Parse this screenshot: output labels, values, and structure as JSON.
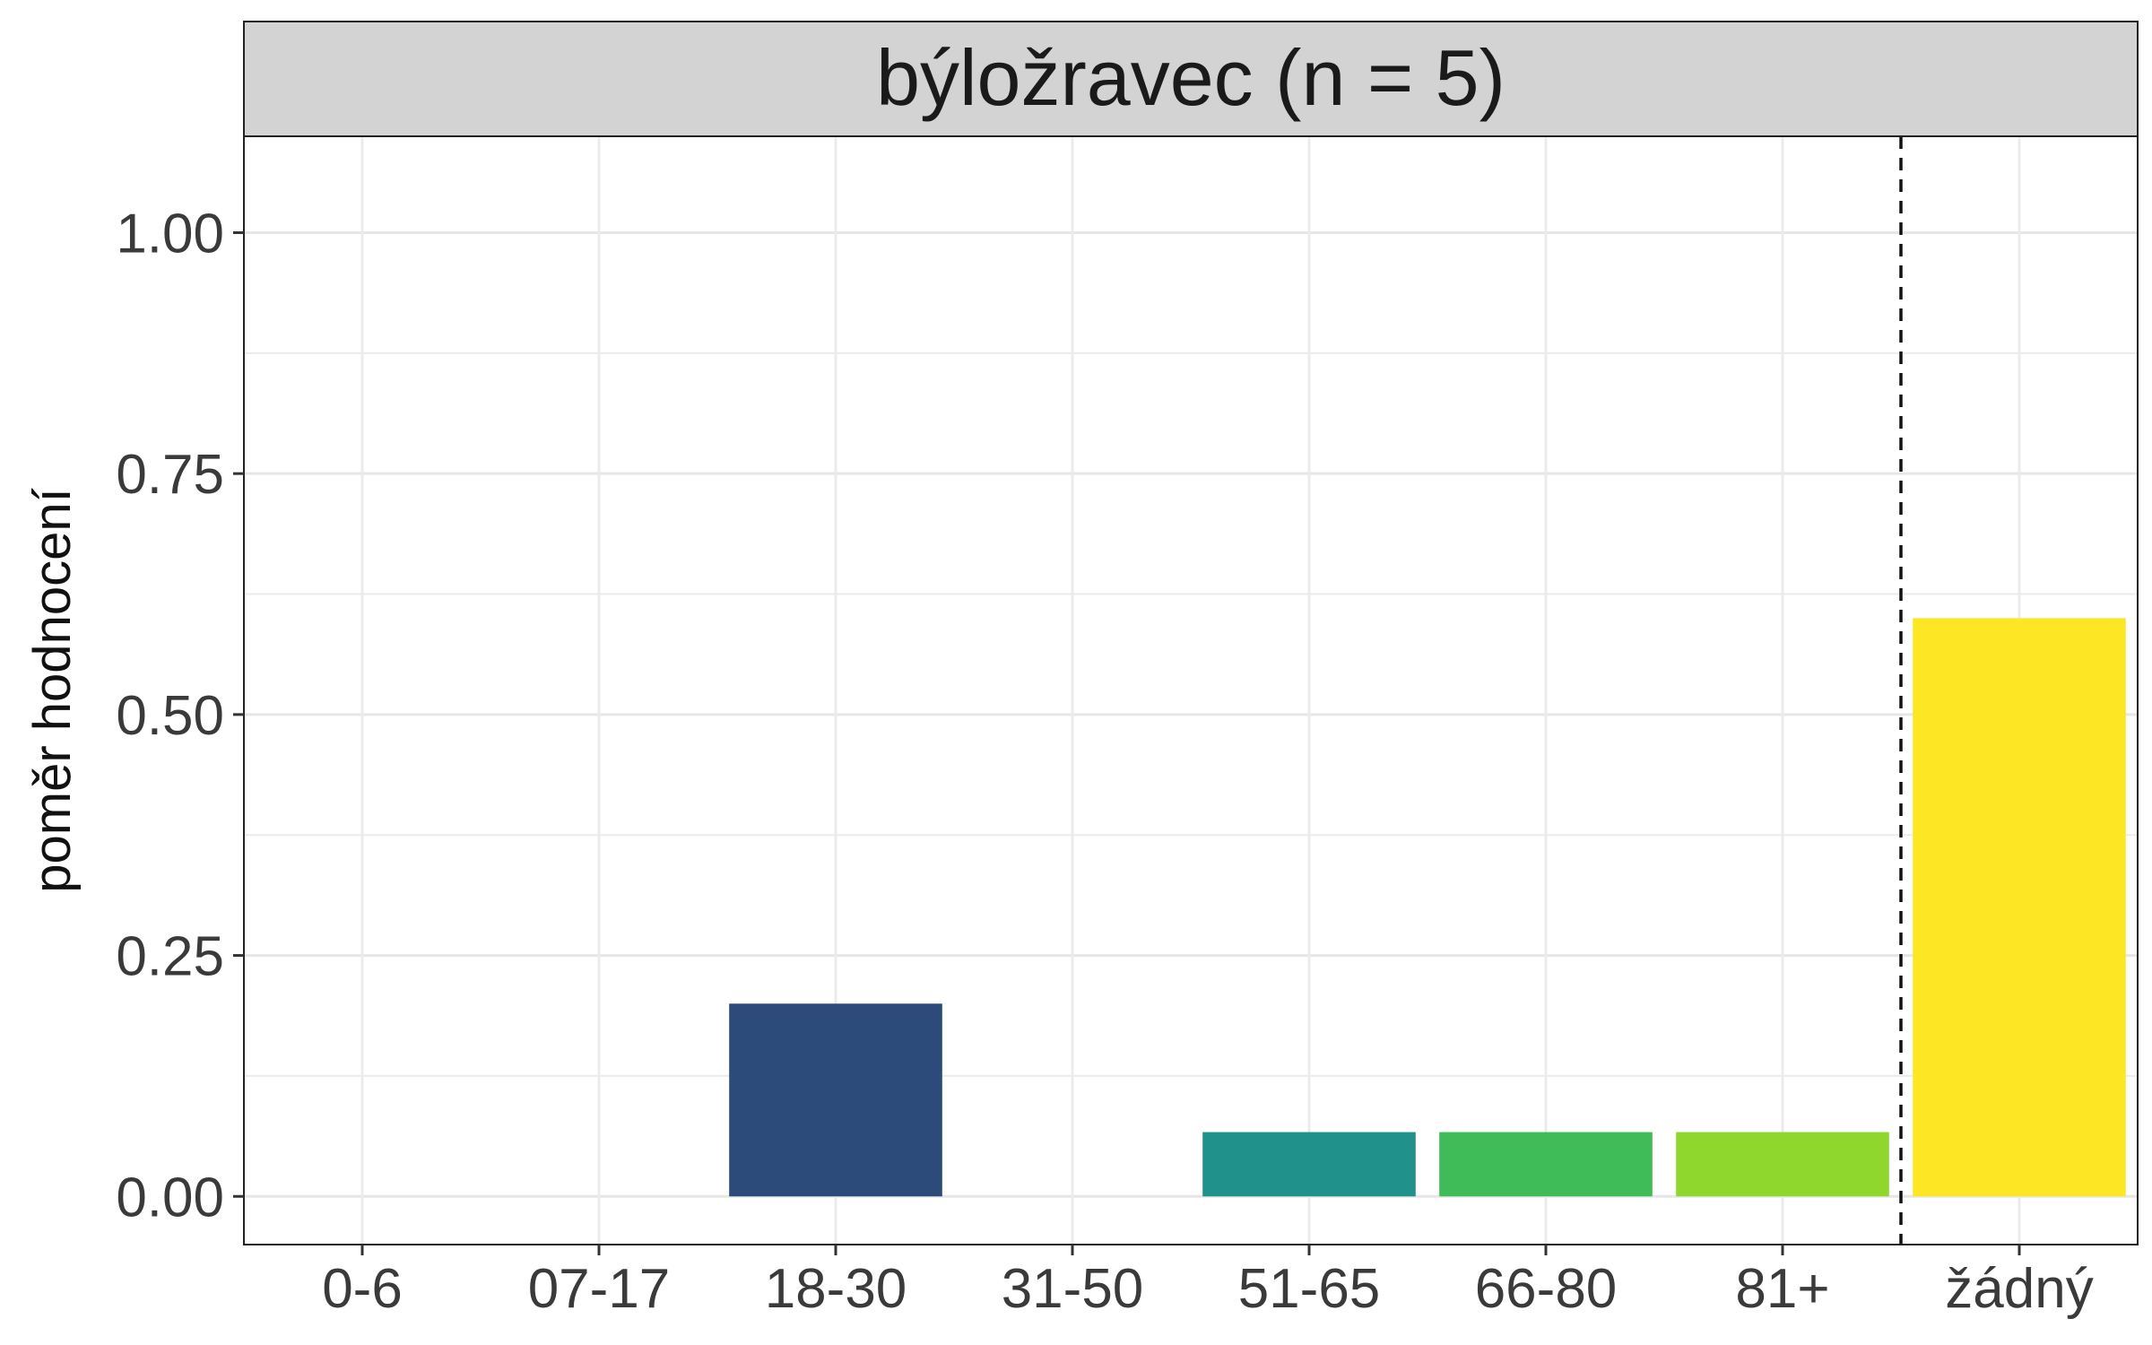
{
  "chart_data": {
    "type": "bar",
    "facet_title": "býložravec (n = 5)",
    "categories": [
      "0-6",
      "07-17",
      "18-30",
      "31-50",
      "51-65",
      "66-80",
      "81+",
      "žádný"
    ],
    "values": [
      0,
      0,
      0.2,
      0,
      0.0667,
      0.0667,
      0.0667,
      0.6
    ],
    "colors": [
      "#440154",
      "#46327e",
      "#2c4a7a",
      "#2a788e",
      "#21918c",
      "#3fbb58",
      "#8fd62d",
      "#fde725"
    ],
    "xlabel": "",
    "ylabel": "poměr hodnocení",
    "ylim": [
      -0.05,
      1.1
    ],
    "y_ticks": [
      "0.00",
      "0.25",
      "0.50",
      "0.75",
      "1.00"
    ],
    "y_tick_values": [
      0,
      0.25,
      0.5,
      0.75,
      1.0
    ],
    "reference_line": {
      "style": "dashed",
      "between": [
        "81+",
        "žádný"
      ]
    },
    "grid": true,
    "legend": "none"
  }
}
